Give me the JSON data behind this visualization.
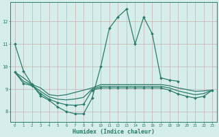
{
  "xlabel": "Humidex (Indice chaleur)",
  "xlim": [
    -0.5,
    23.5
  ],
  "ylim": [
    7.55,
    12.85
  ],
  "xticks": [
    0,
    1,
    2,
    3,
    4,
    5,
    6,
    7,
    8,
    9,
    10,
    11,
    12,
    13,
    14,
    15,
    16,
    17,
    18,
    19,
    20,
    21,
    22,
    23
  ],
  "yticks": [
    8,
    9,
    10,
    11,
    12
  ],
  "bg_color": "#d5eeec",
  "line_color": "#2a7a6a",
  "grid_color_v": "#c8b0b0",
  "grid_color_h": "#c8b0b0",
  "series": [
    {
      "x": [
        0,
        1,
        2,
        3,
        4,
        5,
        6,
        7,
        8,
        9,
        10,
        11,
        12,
        13,
        14,
        15,
        16,
        17,
        18,
        19
      ],
      "y": [
        11.0,
        9.8,
        9.2,
        8.7,
        8.5,
        8.2,
        8.0,
        7.9,
        7.9,
        8.6,
        10.0,
        11.7,
        12.2,
        12.55,
        11.0,
        12.2,
        11.45,
        9.5,
        9.4,
        9.35
      ],
      "marker": "D",
      "lw": 0.9
    },
    {
      "x": [
        0,
        1,
        2,
        3,
        4,
        5,
        6,
        7,
        8,
        9,
        10,
        11,
        12,
        13,
        14,
        15,
        16,
        17,
        18,
        19,
        20,
        21,
        22,
        23
      ],
      "y": [
        9.75,
        9.5,
        9.2,
        9.05,
        8.75,
        8.7,
        8.75,
        8.85,
        8.95,
        9.05,
        9.2,
        9.2,
        9.2,
        9.2,
        9.2,
        9.2,
        9.2,
        9.2,
        9.15,
        9.05,
        8.98,
        8.9,
        8.92,
        8.95
      ],
      "marker": null,
      "lw": 0.9
    },
    {
      "x": [
        0,
        1,
        2,
        3,
        4,
        5,
        6,
        7,
        8,
        9,
        10,
        11,
        12,
        13,
        14,
        15,
        16,
        17,
        18,
        19,
        20,
        21,
        22,
        23
      ],
      "y": [
        9.75,
        9.25,
        9.15,
        8.8,
        8.55,
        8.4,
        8.3,
        8.28,
        8.32,
        8.95,
        9.05,
        9.05,
        9.05,
        9.05,
        9.05,
        9.05,
        9.05,
        9.05,
        8.95,
        8.78,
        8.68,
        8.6,
        8.68,
        8.95
      ],
      "marker": "D",
      "lw": 0.9
    },
    {
      "x": [
        0,
        1,
        2,
        3,
        4,
        5,
        6,
        7,
        8,
        9,
        10,
        11,
        12,
        13,
        14,
        15,
        16,
        17,
        18,
        19,
        20,
        21,
        22,
        23
      ],
      "y": [
        9.75,
        9.35,
        9.17,
        8.9,
        8.65,
        8.55,
        8.52,
        8.56,
        8.63,
        9.0,
        9.12,
        9.12,
        9.12,
        9.12,
        9.12,
        9.12,
        9.12,
        9.12,
        9.05,
        8.92,
        8.83,
        8.75,
        8.8,
        8.95
      ],
      "marker": null,
      "lw": 0.9
    }
  ]
}
